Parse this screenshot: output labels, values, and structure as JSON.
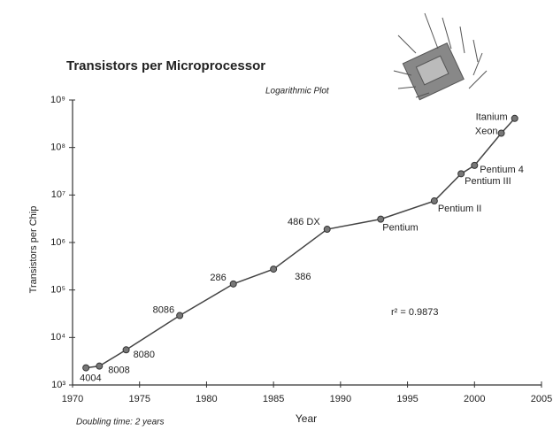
{
  "chart_data": {
    "type": "line",
    "title": "Transistors per Microprocessor",
    "subtitle": "Logarithmic Plot",
    "y_label": "Transistors per Chip",
    "x_label": "Year",
    "annotations": [
      "r² = 0.9873",
      "Doubling time: 2 years"
    ],
    "log_y": true,
    "grid": false,
    "color": "#444444",
    "x": [
      1971,
      1972,
      1974,
      1978,
      1982,
      1985,
      1989,
      1993,
      1997,
      1999,
      2000,
      2002,
      2003
    ],
    "values": [
      2300,
      2500,
      5500,
      29000,
      134000,
      275000,
      1900000,
      3100000,
      7500000,
      28000000,
      42000000,
      200000000,
      410000000
    ],
    "labels": [
      "4004",
      "8008",
      "8080",
      "8086",
      "286",
      "386",
      "486 DX",
      "Pentium",
      "Pentium II",
      "Pentium III",
      "Pentium 4",
      "Xeon",
      "Itanium"
    ],
    "xlim": [
      1970,
      2005
    ],
    "xticks": [
      1970,
      1975,
      1980,
      1985,
      1990,
      1995,
      2000,
      2005
    ],
    "ylim": [
      1000,
      1000000000
    ],
    "yticks": [
      {
        "value": 1000,
        "label": "10³"
      },
      {
        "value": 10000,
        "label": "10⁴"
      },
      {
        "value": 100000,
        "label": "10⁵"
      },
      {
        "value": 1000000,
        "label": "10⁶"
      },
      {
        "value": 10000000,
        "label": "10⁷"
      },
      {
        "value": 100000000,
        "label": "10⁸"
      },
      {
        "value": 1000000000,
        "label": "10⁹"
      }
    ]
  }
}
